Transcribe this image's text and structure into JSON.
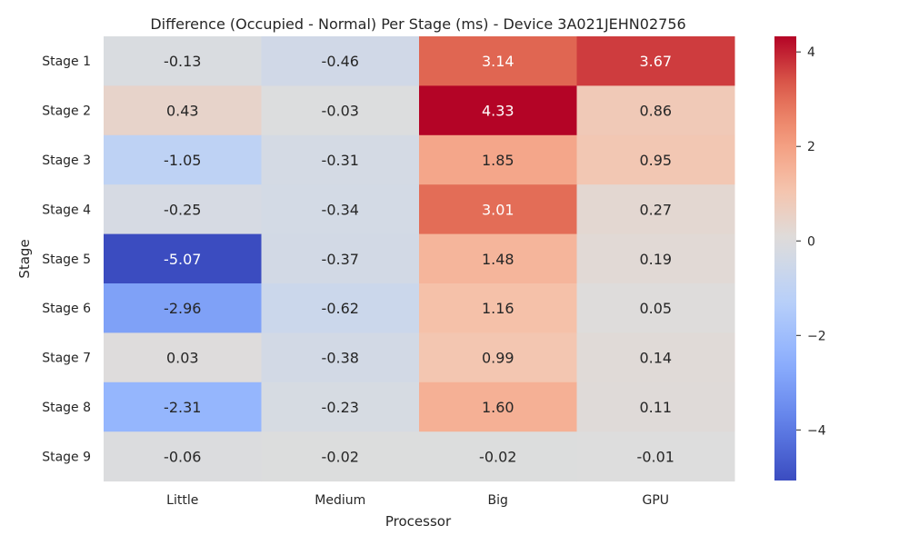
{
  "chart_data": {
    "type": "heatmap",
    "title": "Difference (Occupied - Normal) Per Stage (ms) - Device 3A021JEHN02756",
    "xlabel": "Processor",
    "ylabel": "Stage",
    "x_categories": [
      "Little",
      "Medium",
      "Big",
      "GPU"
    ],
    "y_categories": [
      "Stage 1",
      "Stage 2",
      "Stage 3",
      "Stage 4",
      "Stage 5",
      "Stage 6",
      "Stage 7",
      "Stage 8",
      "Stage 9"
    ],
    "values": [
      [
        -0.13,
        -0.46,
        3.14,
        3.67
      ],
      [
        0.43,
        -0.03,
        4.33,
        0.86
      ],
      [
        -1.05,
        -0.31,
        1.85,
        0.95
      ],
      [
        -0.25,
        -0.34,
        3.01,
        0.27
      ],
      [
        -5.07,
        -0.37,
        1.48,
        0.19
      ],
      [
        -2.96,
        -0.62,
        1.16,
        0.05
      ],
      [
        0.03,
        -0.38,
        0.99,
        0.14
      ],
      [
        -2.31,
        -0.23,
        1.6,
        0.11
      ],
      [
        -0.06,
        -0.02,
        -0.02,
        -0.01
      ]
    ],
    "value_labels": [
      [
        "-0.13",
        "-0.46",
        "3.14",
        "3.67"
      ],
      [
        "0.43",
        "-0.03",
        "4.33",
        "0.86"
      ],
      [
        "-1.05",
        "-0.31",
        "1.85",
        "0.95"
      ],
      [
        "-0.25",
        "-0.34",
        "3.01",
        "0.27"
      ],
      [
        "-5.07",
        "-0.37",
        "1.48",
        "0.19"
      ],
      [
        "-2.96",
        "-0.62",
        "1.16",
        "0.05"
      ],
      [
        "0.03",
        "-0.38",
        "0.99",
        "0.14"
      ],
      [
        "-2.31",
        "-0.23",
        "1.60",
        "0.11"
      ],
      [
        "-0.06",
        "-0.02",
        "-0.02",
        "-0.01"
      ]
    ],
    "colormap": "coolwarm",
    "vmin": -5.07,
    "vmax": 4.33,
    "colorbar_ticks": [
      -4,
      -2,
      0,
      2,
      4
    ],
    "colorbar_tick_labels": [
      "−4",
      "−2",
      "0",
      "2",
      "4"
    ]
  }
}
